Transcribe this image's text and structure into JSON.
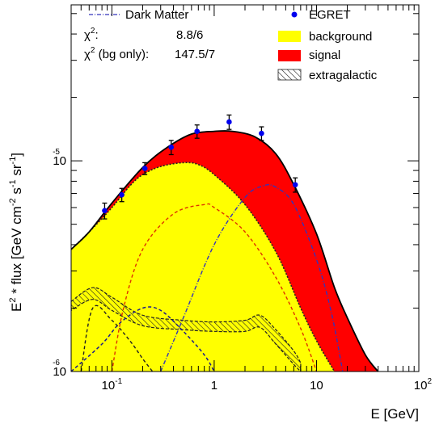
{
  "chart_data": {
    "type": "area",
    "x_scale": "log",
    "y_scale": "log",
    "xlim": [
      0.04,
      100
    ],
    "ylim": [
      1e-06,
      5.5e-05
    ],
    "xlabel": "E [GeV]",
    "ylabel_parts": {
      "main": "E",
      "sup2": "2",
      "mid": " * flux [GeV cm",
      "supm2": "-2",
      "s": " s",
      "supm1a": "-1",
      "sr": " sr",
      "supm1b": "-1",
      "end": "]"
    },
    "x_ticks": [
      {
        "base": "10",
        "exp": "-1",
        "value": 0.1
      },
      {
        "label": "1",
        "value": 1
      },
      {
        "label": "10",
        "value": 10
      },
      {
        "base": "10",
        "exp": "2",
        "value": 100
      }
    ],
    "y_ticks": [
      {
        "base": "10",
        "exp": "-5",
        "value": 1e-05
      },
      {
        "base": "10",
        "exp": "-6",
        "value": 1e-06
      }
    ],
    "legend": {
      "dark_matter": "Dark Matter",
      "chi2_base": "χ",
      "chi2_sup": "2",
      "chi2_colon": ":",
      "chi2_value": "8.8/6",
      "chi2_bg_label": " (bg only):",
      "chi2_bg_value": "147.5/7",
      "egret": "EGRET",
      "background": "background",
      "signal": "signal",
      "extragalactic": "extragalactic"
    },
    "colors": {
      "background": "#ffff00",
      "signal": "#ff0000",
      "points": "#0000ee",
      "dark_matter_line": "#3333bb",
      "inner_dashed_red": "#dd3300",
      "inner_dashed_blue": "#1a1a8a",
      "extragalactic_hatch": "#222222"
    },
    "series": [
      {
        "name": "EGRET",
        "kind": "points",
        "points": [
          {
            "x": 0.085,
            "y": 5.8e-06,
            "err": 5e-07
          },
          {
            "x": 0.125,
            "y": 6.9e-06,
            "err": 5e-07
          },
          {
            "x": 0.21,
            "y": 9.2e-06,
            "err": 6e-07
          },
          {
            "x": 0.38,
            "y": 1.16e-05,
            "err": 9e-07
          },
          {
            "x": 0.68,
            "y": 1.38e-05,
            "err": 1e-06
          },
          {
            "x": 1.4,
            "y": 1.53e-05,
            "err": 1.2e-06
          },
          {
            "x": 2.9,
            "y": 1.35e-05,
            "err": 1e-06
          },
          {
            "x": 6.2,
            "y": 7.7e-06,
            "err": 6e-07
          }
        ]
      },
      {
        "name": "total",
        "kind": "curve",
        "points": [
          [
            0.04,
            3.8e-06
          ],
          [
            0.06,
            4.6e-06
          ],
          [
            0.1,
            6.3e-06
          ],
          [
            0.2,
            9.3e-06
          ],
          [
            0.35,
            1.16e-05
          ],
          [
            0.6,
            1.34e-05
          ],
          [
            1.0,
            1.38e-05
          ],
          [
            1.5,
            1.38e-05
          ],
          [
            2.5,
            1.3e-05
          ],
          [
            4.0,
            1.08e-05
          ],
          [
            6.0,
            7.7e-06
          ],
          [
            10,
            4.5e-06
          ],
          [
            15,
            2.5e-06
          ],
          [
            20,
            1.8e-06
          ],
          [
            30,
            1.2e-06
          ],
          [
            40,
            1e-06
          ]
        ]
      },
      {
        "name": "background",
        "kind": "curve",
        "points": [
          [
            0.04,
            3.8e-06
          ],
          [
            0.06,
            4.6e-06
          ],
          [
            0.1,
            6e-06
          ],
          [
            0.15,
            7.6e-06
          ],
          [
            0.2,
            8.6e-06
          ],
          [
            0.3,
            9.4e-06
          ],
          [
            0.5,
            9.8e-06
          ],
          [
            0.7,
            9.6e-06
          ],
          [
            1.0,
            8.6e-06
          ],
          [
            2.0,
            6.2e-06
          ],
          [
            4.0,
            3.7e-06
          ],
          [
            7.0,
            2e-06
          ],
          [
            10,
            1.4e-06
          ],
          [
            15,
            1e-06
          ]
        ]
      },
      {
        "name": "Dark Matter",
        "kind": "curve",
        "points": [
          [
            0.3,
            1e-06
          ],
          [
            0.5,
            1.8e-06
          ],
          [
            1.0,
            4e-06
          ],
          [
            2.0,
            6.7e-06
          ],
          [
            3.0,
            7.6e-06
          ],
          [
            4.0,
            7.5e-06
          ],
          [
            6.0,
            6.2e-06
          ],
          [
            10,
            3.4e-06
          ],
          [
            14,
            1.9e-06
          ],
          [
            18,
            1e-06
          ]
        ]
      },
      {
        "name": "extragalactic",
        "kind": "band",
        "upper": [
          [
            0.04,
            2.15e-06
          ],
          [
            0.065,
            2.5e-06
          ],
          [
            0.1,
            2.25e-06
          ],
          [
            0.2,
            1.85e-06
          ],
          [
            0.5,
            1.75e-06
          ],
          [
            1.0,
            1.72e-06
          ],
          [
            2.0,
            1.75e-06
          ],
          [
            2.8,
            1.85e-06
          ],
          [
            4.0,
            1.58e-06
          ],
          [
            6.0,
            1.25e-06
          ],
          [
            7.0,
            1.1e-06
          ]
        ],
        "lower": [
          [
            0.04,
            1.95e-06
          ],
          [
            0.065,
            2.2e-06
          ],
          [
            0.1,
            1.95e-06
          ],
          [
            0.2,
            1.65e-06
          ],
          [
            0.5,
            1.58e-06
          ],
          [
            1.0,
            1.55e-06
          ],
          [
            2.0,
            1.55e-06
          ],
          [
            2.8,
            1.62e-06
          ],
          [
            4.0,
            1.35e-06
          ],
          [
            6.0,
            1.08e-06
          ],
          [
            7.0,
            1e-06
          ]
        ]
      },
      {
        "name": "inner-red-dashed",
        "kind": "curve",
        "points": [
          [
            0.1,
            1e-06
          ],
          [
            0.13,
            2e-06
          ],
          [
            0.2,
            3.8e-06
          ],
          [
            0.4,
            5.6e-06
          ],
          [
            0.8,
            6.2e-06
          ],
          [
            1.0,
            6e-06
          ],
          [
            2.0,
            4.6e-06
          ],
          [
            4.0,
            2.8e-06
          ],
          [
            7.0,
            1.6e-06
          ],
          [
            10,
            1e-06
          ]
        ]
      },
      {
        "name": "inner-blue-dashed",
        "kind": "curve",
        "points": [
          [
            0.04,
            1e-06
          ],
          [
            0.08,
            1.35e-06
          ],
          [
            0.12,
            1.7e-06
          ],
          [
            0.2,
            2e-06
          ],
          [
            0.3,
            1.95e-06
          ],
          [
            0.5,
            1.55e-06
          ],
          [
            0.8,
            1.2e-06
          ],
          [
            1.0,
            1e-06
          ]
        ]
      },
      {
        "name": "inner-black-dashed",
        "kind": "curve",
        "points": [
          [
            0.05,
            1e-06
          ],
          [
            0.065,
            2e-06
          ],
          [
            0.1,
            1.75e-06
          ],
          [
            0.15,
            1.4e-06
          ],
          [
            0.2,
            1.15e-06
          ],
          [
            0.25,
            1e-06
          ]
        ]
      }
    ]
  }
}
